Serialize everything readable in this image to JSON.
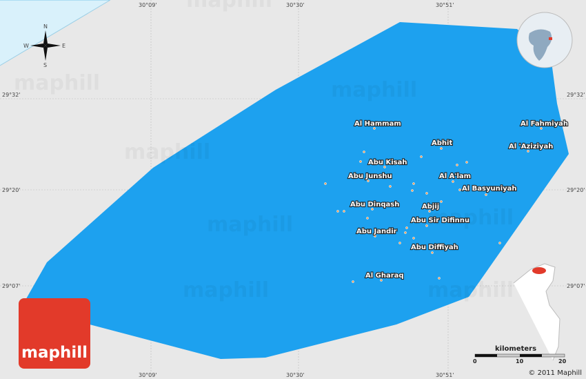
{
  "map": {
    "land_color": "#e8e8e8",
    "region_color": "#1da1ef",
    "water_color": "#d9f1fb",
    "dot_color": "#f4a460"
  },
  "coords": {
    "top": [
      "30°09'",
      "30°30'",
      "30°51'"
    ],
    "bottom": [
      "30°09'",
      "30°30'",
      "30°51'"
    ],
    "left": [
      "29°32'",
      "29°20'",
      "29°07'"
    ],
    "right": [
      "29°32'",
      "29°20'",
      "29°07'"
    ]
  },
  "compass": {
    "n": "N",
    "s": "S",
    "e": "E",
    "w": "W"
  },
  "places": [
    "Al Hammam",
    "Abhit",
    "Al Fahmiyah",
    "Al 'Aziziyah",
    "Abu Kisah",
    "Abu Junshu",
    "Al A'lam",
    "Al Basyuniyah",
    "Abu Dinqash",
    "Abjij",
    "Abu Sir Difinnu",
    "Abu Jandir",
    "Abu Diffiyah",
    "Al Gharaq"
  ],
  "watermark": "maphill",
  "logo": "maphill",
  "scale": {
    "unit": "kilometers",
    "ticks": [
      "0",
      "10",
      "20"
    ]
  },
  "copyright": "© 2011 Maphill"
}
